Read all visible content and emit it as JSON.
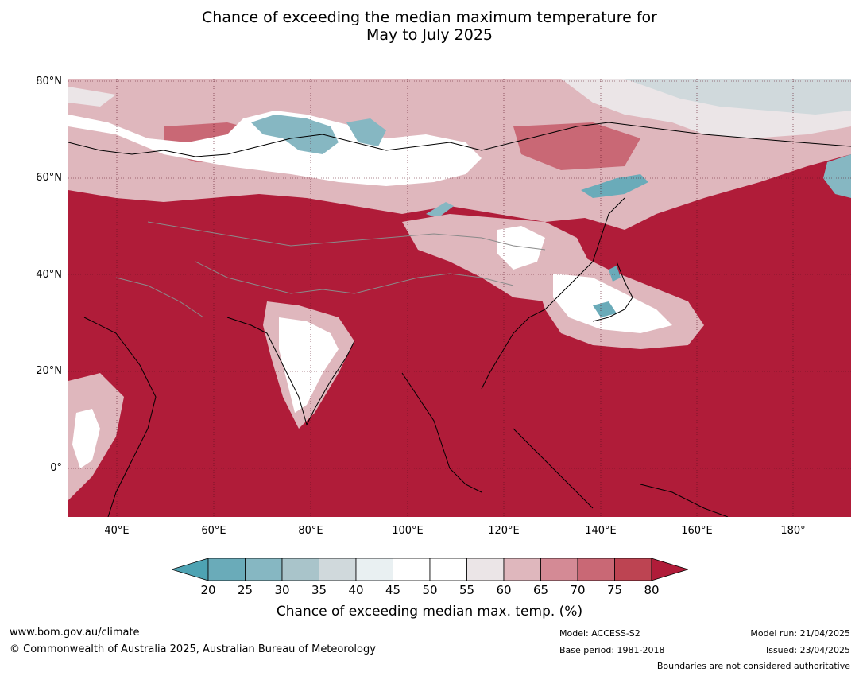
{
  "title_line1": "Chance of exceeding the median maximum temperature for",
  "title_line2": "May to July 2025",
  "lat_labels": [
    "80°N",
    "60°N",
    "40°N",
    "20°N",
    "0°"
  ],
  "lon_labels": [
    "40°E",
    "60°E",
    "80°E",
    "100°E",
    "120°E",
    "140°E",
    "160°E",
    "180°"
  ],
  "colorbar": {
    "ticks": [
      "20",
      "25",
      "30",
      "35",
      "40",
      "45",
      "50",
      "55",
      "60",
      "65",
      "70",
      "75",
      "80"
    ],
    "colors": [
      "#4ea3b3",
      "#6aabb9",
      "#86b7c2",
      "#a9c4ca",
      "#d0d9dc",
      "#e9f0f2",
      "#ffffff",
      "#ffffff",
      "#ebe5e7",
      "#dfb7bd",
      "#d48a95",
      "#c96875",
      "#bd4452",
      "#b01c39"
    ],
    "label": "Chance of exceeding median max. temp. (%)"
  },
  "map_colors": {
    "ocean_land_warm": "#b01c39",
    "mid_warm": "#c96875",
    "light_warm": "#dfb7bd",
    "neutral": "#ffffff",
    "neutral_grey": "#ebe5e7",
    "cool_light": "#d0d9dc",
    "cool": "#6aabb9",
    "coast": "#000000",
    "border": "#8a8a8a"
  },
  "footer": {
    "website": "www.bom.gov.au/climate",
    "copyright": "© Commonwealth of Australia 2025, Australian Bureau of Meteorology",
    "model": "Model: ACCESS-S2",
    "base_period": "Base period: 1981-2018",
    "model_run": "Model run: 21/04/2025",
    "issued": "Issued: 23/04/2025",
    "disclaimer": "Boundaries are not considered authoritative"
  }
}
